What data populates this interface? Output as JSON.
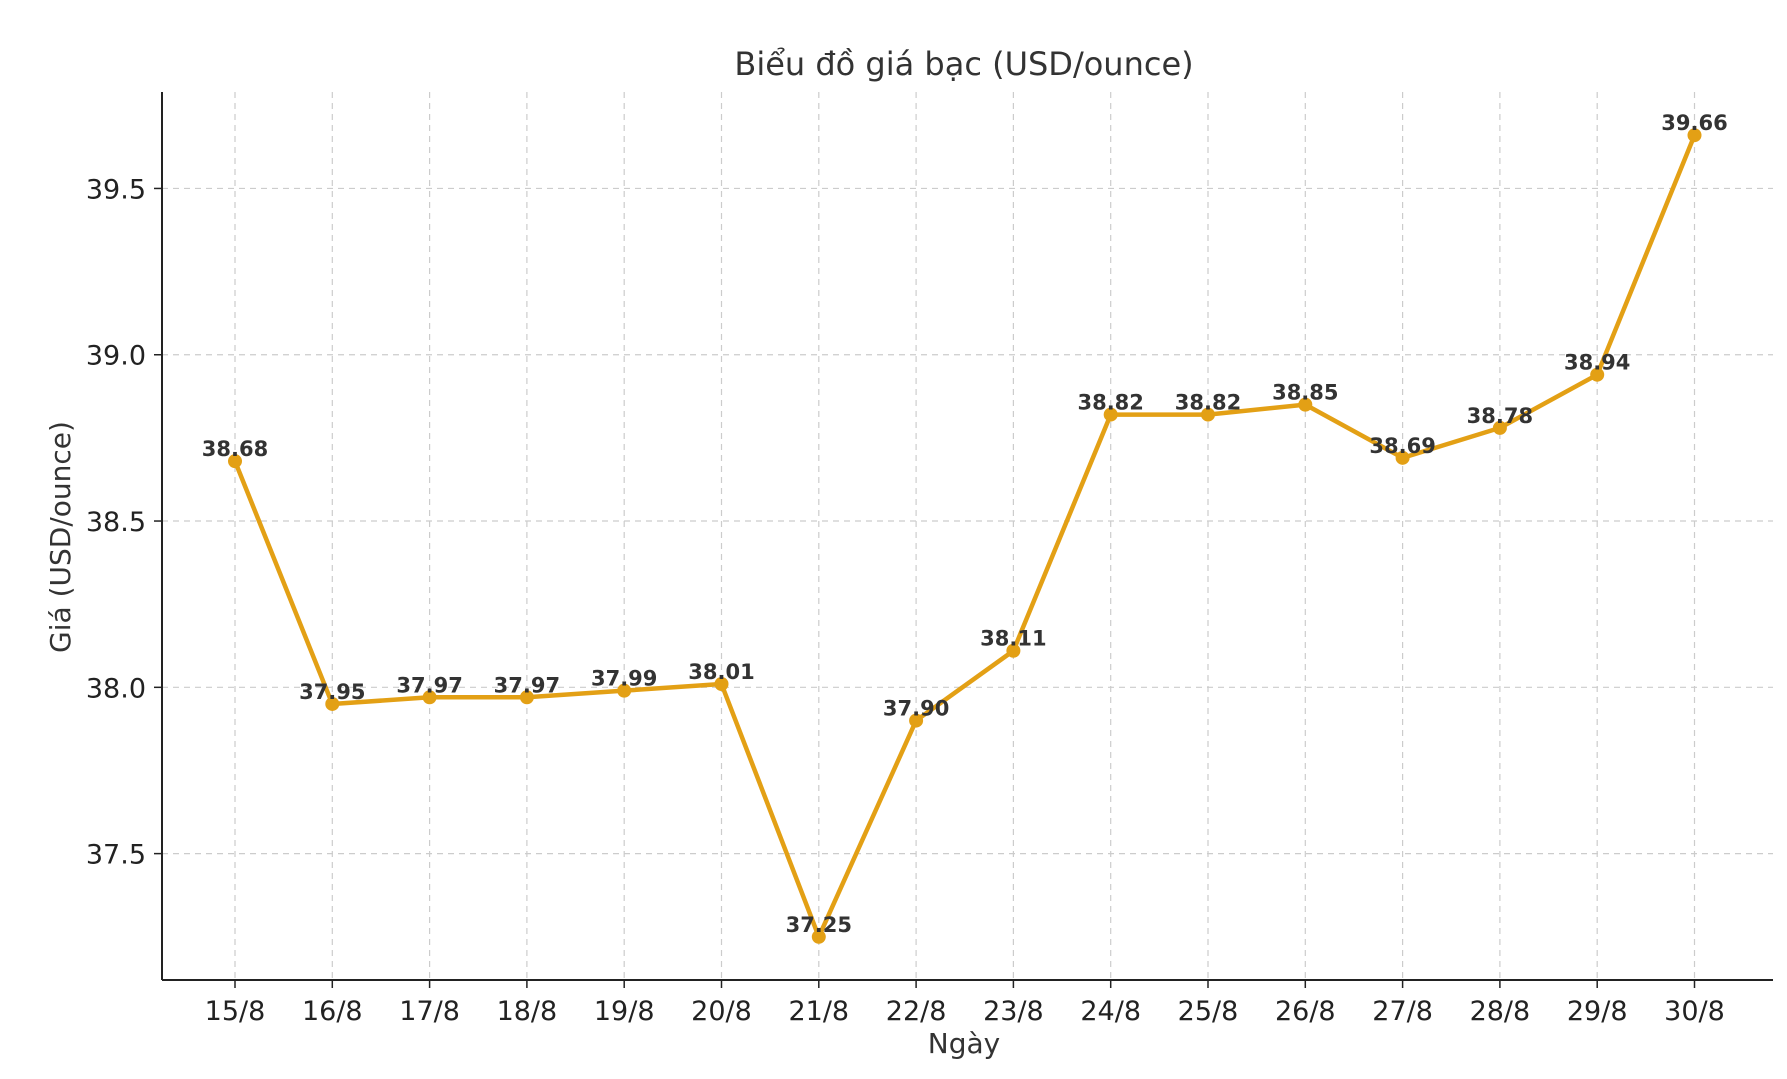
{
  "chart_data": {
    "type": "line",
    "title": "Biểu đồ giá bạc (USD/ounce)",
    "xlabel": "Ngày",
    "ylabel": "Giá (USD/ounce)",
    "categories": [
      "15/8",
      "16/8",
      "17/8",
      "18/8",
      "19/8",
      "20/8",
      "21/8",
      "22/8",
      "23/8",
      "24/8",
      "25/8",
      "26/8",
      "27/8",
      "28/8",
      "29/8",
      "30/8"
    ],
    "values": [
      38.68,
      37.95,
      37.97,
      37.97,
      37.99,
      38.01,
      37.25,
      37.9,
      38.11,
      38.82,
      38.82,
      38.85,
      38.69,
      38.78,
      38.94,
      39.66
    ],
    "data_labels": [
      "38.68",
      "37.95",
      "37.97",
      "37.97",
      "37.99",
      "38.01",
      "37.25",
      "37.90",
      "38.11",
      "38.82",
      "38.82",
      "38.85",
      "38.69",
      "38.78",
      "38.94",
      "39.66"
    ],
    "yticks": [
      37.5,
      38.0,
      38.5,
      39.0,
      39.5
    ],
    "ytick_labels": [
      "37.5",
      "38.0",
      "38.5",
      "39.0",
      "39.5"
    ],
    "ylim": [
      37.12,
      39.79
    ],
    "grid": true,
    "legend": "none",
    "line_color": "#e3a015"
  }
}
